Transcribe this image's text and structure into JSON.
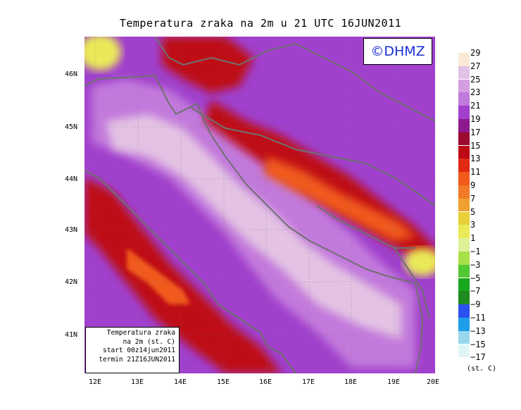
{
  "title": "Temperatura zraka na 2m u 21 UTC 16JUN2011",
  "logo": "©DHMZ",
  "infobox": {
    "line1": "Temperatura zraka",
    "line2": "na 2m (st. C)",
    "line3": "start 00z14jun2011",
    "line4": "termin 21Z16JUN2011"
  },
  "lat_labels": [
    "46N",
    "45N",
    "44N",
    "43N",
    "42N",
    "41N"
  ],
  "lon_labels": [
    "12E",
    "13E",
    "14E",
    "15E",
    "16E",
    "17E",
    "18E",
    "19E",
    "20E"
  ],
  "legend": {
    "labels": [
      "29",
      "27",
      "25",
      "23",
      "21",
      "19",
      "17",
      "15",
      "13",
      "11",
      "9",
      "7",
      "5",
      "3",
      "1",
      "−1",
      "−3",
      "−5",
      "−7",
      "−9",
      "−11",
      "−13",
      "−15",
      "−17"
    ],
    "colors": [
      "#fbe9d7",
      "#e3c2e3",
      "#d59ee0",
      "#c279dc",
      "#a040cc",
      "#8e188e",
      "#9c0a2e",
      "#be0a16",
      "#e02a14",
      "#f05a1c",
      "#f07a26",
      "#f0a030",
      "#e8d03a",
      "#eaea58",
      "#dcf098",
      "#a8e04a",
      "#52c834",
      "#18a81e",
      "#1e8c22",
      "#2c50f0",
      "#1e9ee8",
      "#9ad8ec",
      "#e0f6f6"
    ],
    "unit": "(st. C)"
  },
  "colors": {
    "sea_light": "#e3c2e3",
    "land_base": "#a040cc",
    "accent_blue": "#1a2ed6"
  }
}
